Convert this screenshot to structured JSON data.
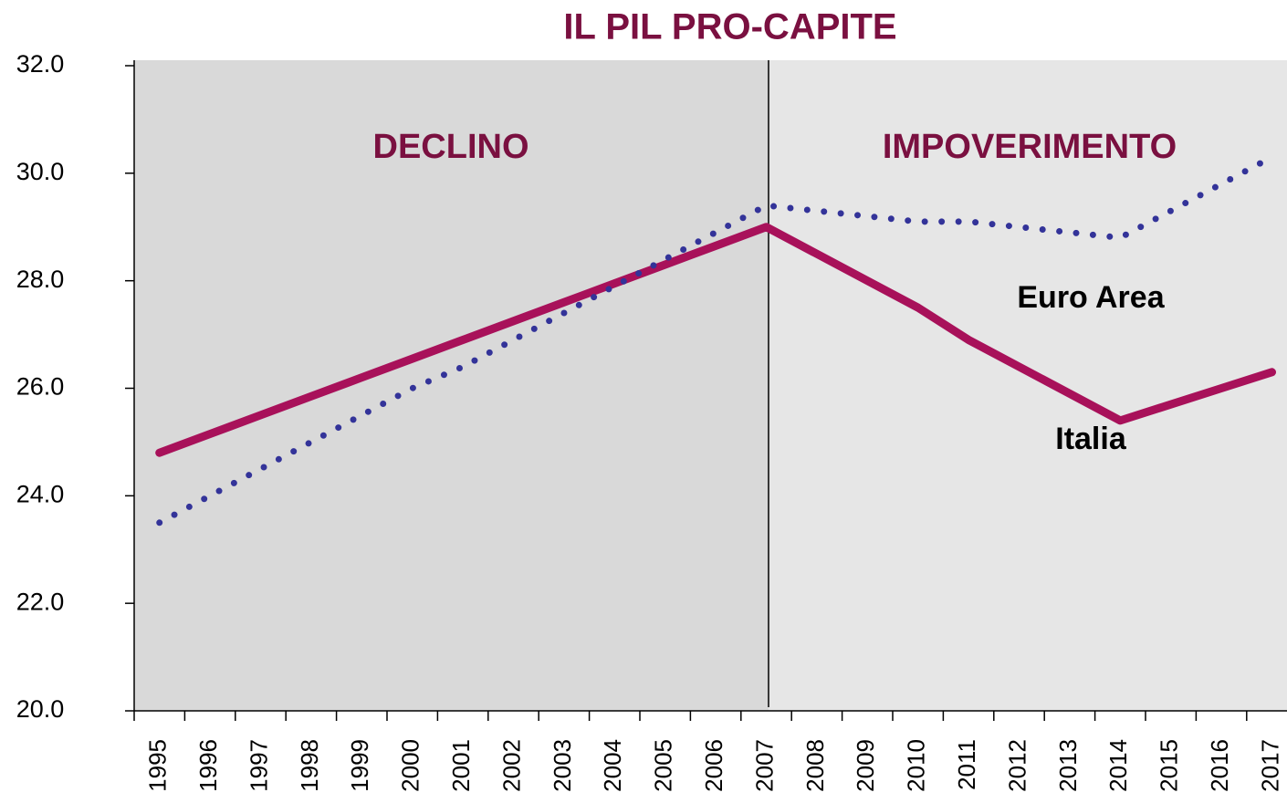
{
  "chart_data": {
    "type": "line",
    "title": "IL PIL PRO-CAPITE",
    "categories": [
      "1995",
      "1996",
      "1997",
      "1998",
      "1999",
      "2000",
      "2001",
      "2002",
      "2003",
      "2004",
      "2005",
      "2006",
      "2007",
      "2008",
      "2009",
      "2010",
      "2011",
      "2012",
      "2013",
      "2014",
      "2015",
      "2016",
      "2017"
    ],
    "series": [
      {
        "name": "Italia",
        "color": "#a8115a",
        "style": "solid",
        "values": [
          24.8,
          25.15,
          25.5,
          25.85,
          26.2,
          26.55,
          26.9,
          27.25,
          27.6,
          27.95,
          28.3,
          28.65,
          29.0,
          28.5,
          28.0,
          27.5,
          26.9,
          26.4,
          25.9,
          25.4,
          25.7,
          26.0,
          26.3
        ]
      },
      {
        "name": "Euro Area",
        "color": "#333399",
        "style": "dotted",
        "values": [
          23.5,
          24.0,
          24.5,
          25.0,
          25.5,
          26.0,
          26.4,
          26.9,
          27.4,
          27.9,
          28.4,
          28.9,
          29.4,
          29.3,
          29.2,
          29.1,
          29.1,
          29.0,
          28.9,
          28.8,
          29.3,
          29.8,
          30.3
        ]
      }
    ],
    "annotations": [
      "DECLINO",
      "IMPOVERIMENTO"
    ],
    "ylim": [
      20,
      32
    ],
    "yticks": [
      {
        "value": 20,
        "label": "20.0"
      },
      {
        "value": 22,
        "label": "22.0"
      },
      {
        "value": 24,
        "label": "24.0"
      },
      {
        "value": 26,
        "label": "26.0"
      },
      {
        "value": 28,
        "label": "28.0"
      },
      {
        "value": 30,
        "label": "30.0"
      },
      {
        "value": 32,
        "label": "32.0"
      }
    ]
  }
}
